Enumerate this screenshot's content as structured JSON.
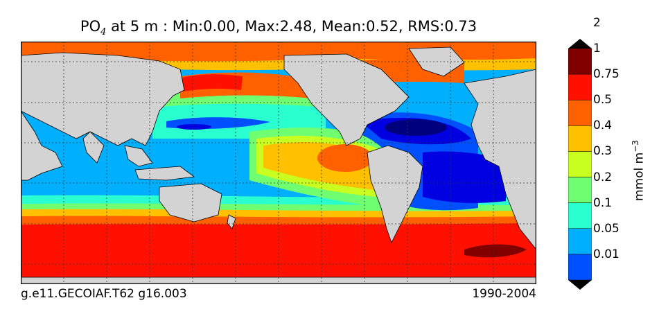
{
  "title": {
    "variable": "PO",
    "subscript": "4",
    "rest": " at 5 m : Min:0.00, Max:2.48, Mean:0.52, RMS:0.73"
  },
  "footer": {
    "left": "g.e11.GECOIAF.T62 g16.003",
    "right": "1990-2004"
  },
  "colorbar": {
    "unit_label": "mmol m",
    "unit_exponent": "−3",
    "colors": [
      "#00007f",
      "#0000e0",
      "#0050ff",
      "#00b0ff",
      "#2affd0",
      "#70ff70",
      "#c8ff20",
      "#ffc000",
      "#ff6000",
      "#ff1000",
      "#800000"
    ],
    "tick_labels": [
      "0.01",
      "0.05",
      "0.1",
      "0.2",
      "0.3",
      "0.4",
      "0.5",
      "0.75",
      "1",
      "2"
    ]
  },
  "map": {
    "land_color": "#d3d3d3",
    "grid": true,
    "colormap": "jet"
  }
}
